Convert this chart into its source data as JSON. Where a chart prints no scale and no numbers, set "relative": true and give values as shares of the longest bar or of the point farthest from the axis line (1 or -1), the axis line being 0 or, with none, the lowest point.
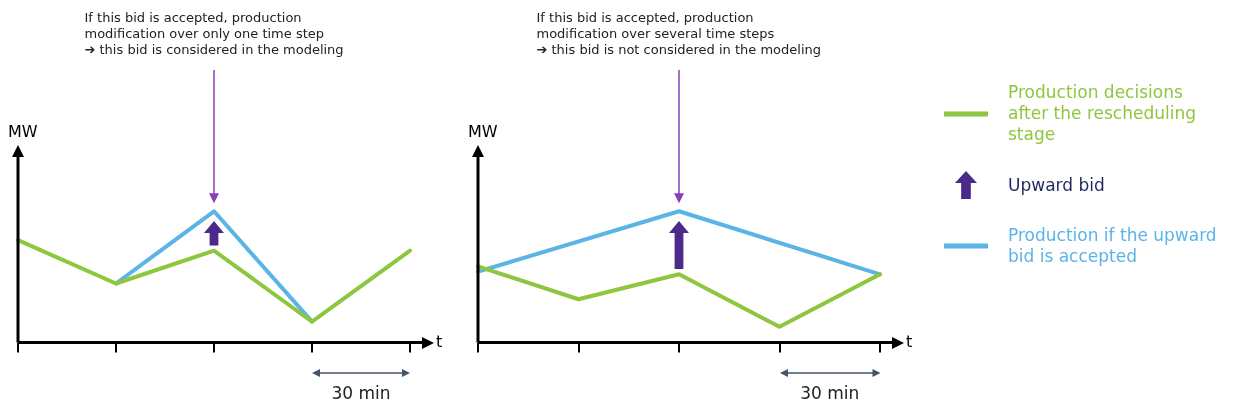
{
  "chart_data": [
    {
      "type": "line",
      "xlabel": "t",
      "ylabel": "MW",
      "relative": true,
      "marker": "none",
      "line_style": "solid",
      "legend": false,
      "categories": [
        null,
        null,
        null,
        null,
        null
      ],
      "series": [
        {
          "color": "#8dc63f",
          "values": [
            0.78,
            0.45,
            0.7,
            0.16,
            0.7
          ]
        },
        {
          "color": "#5bb4e6",
          "values": [
            null,
            0.45,
            1,
            0.16,
            null
          ]
        }
      ],
      "annotations": [
        "If this bid is accepted, production\nmodification over only one time step\n➔ this bid is considered in the modeling",
        "30 min"
      ]
    },
    {
      "type": "line",
      "xlabel": "t",
      "ylabel": "MW",
      "relative": true,
      "marker": "none",
      "line_style": "solid",
      "legend": "right",
      "categories": [
        null,
        null,
        null,
        null,
        null
      ],
      "series": [
        {
          "name": "Production decisions after the rescheduling stage",
          "color": "#8dc63f",
          "values": [
            0.58,
            0.33,
            0.52,
            0.12,
            0.52
          ]
        },
        {
          "name": "Production if the upward bid is accepted",
          "color": "#5bb4e6",
          "values": [
            0.54,
            null,
            1,
            null,
            0.52
          ]
        }
      ],
      "annotations": [
        "If this bid is accepted, production\nmodification over several time steps\n➔ this bid is not considered in the modeling",
        "30 min",
        "Upward bid"
      ]
    }
  ]
}
